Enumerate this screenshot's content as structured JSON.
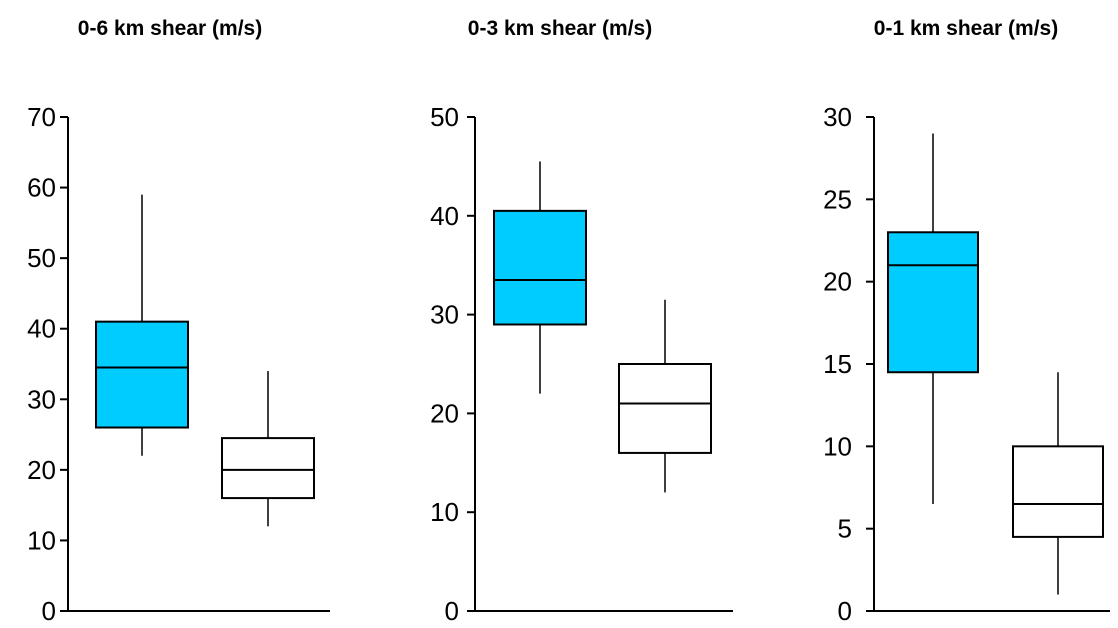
{
  "colors": {
    "tornadic_fill": "#00CCFF",
    "nontornadic_fill": "#FFFFFF",
    "axis": "#000000"
  },
  "chart_data": [
    {
      "type": "box",
      "title": "0-6 km shear (m/s)",
      "xlabel": "",
      "ylabel": "",
      "ylim": [
        0,
        70
      ],
      "yticks": [
        0,
        10,
        20,
        30,
        40,
        50,
        60,
        70
      ],
      "boxes": [
        {
          "fill": "#00CCFF",
          "whisker_low": 22,
          "q1": 26,
          "median": 34.5,
          "q3": 41,
          "whisker_high": 59
        },
        {
          "fill": "#FFFFFF",
          "whisker_low": 12,
          "q1": 16,
          "median": 20,
          "q3": 24.5,
          "whisker_high": 34
        }
      ]
    },
    {
      "type": "box",
      "title": "0-3 km shear (m/s)",
      "xlabel": "",
      "ylabel": "",
      "ylim": [
        0,
        50
      ],
      "yticks": [
        0,
        10,
        20,
        30,
        40,
        50
      ],
      "boxes": [
        {
          "fill": "#00CCFF",
          "whisker_low": 22,
          "q1": 29,
          "median": 33.5,
          "q3": 40.5,
          "whisker_high": 45.5
        },
        {
          "fill": "#FFFFFF",
          "whisker_low": 12,
          "q1": 16,
          "median": 21,
          "q3": 25,
          "whisker_high": 31.5
        }
      ]
    },
    {
      "type": "box",
      "title": "0-1 km shear (m/s)",
      "xlabel": "",
      "ylabel": "",
      "ylim": [
        0,
        30
      ],
      "yticks": [
        0,
        5,
        10,
        15,
        20,
        25,
        30
      ],
      "boxes": [
        {
          "fill": "#00CCFF",
          "whisker_low": 6.5,
          "q1": 14.5,
          "median": 21,
          "q3": 23,
          "whisker_high": 29
        },
        {
          "fill": "#FFFFFF",
          "whisker_low": 1,
          "q1": 4.5,
          "median": 6.5,
          "q3": 10,
          "whisker_high": 14.5
        }
      ]
    }
  ]
}
